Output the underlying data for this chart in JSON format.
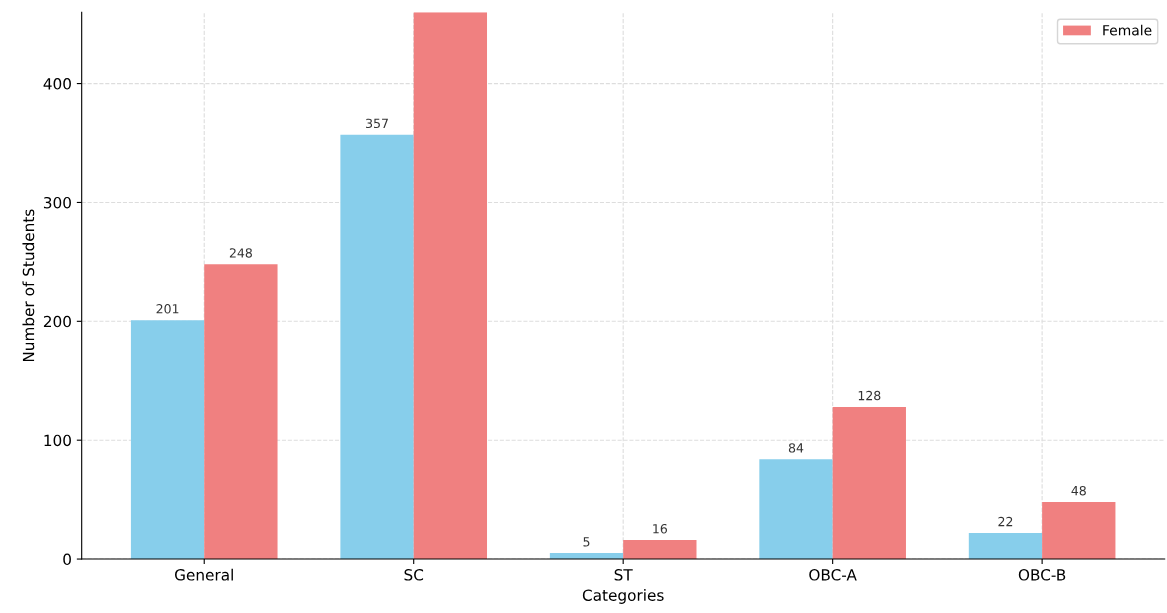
{
  "chart_data": {
    "type": "bar",
    "xlabel": "Categories",
    "ylabel": "Number of Students",
    "categories": [
      "General",
      "SC",
      "ST",
      "OBC-A",
      "OBC-B"
    ],
    "series": [
      {
        "color": "#87ceeb",
        "values": [
          201,
          357,
          5,
          84,
          22
        ],
        "value_labels": [
          "201",
          "357",
          "5",
          "84",
          "22"
        ]
      },
      {
        "name": "Female",
        "color": "#f08080",
        "values": [
          248,
          460,
          16,
          128,
          48
        ],
        "value_labels": [
          "248",
          null,
          "16",
          "128",
          "48"
        ]
      }
    ],
    "ylim": [
      0,
      460
    ],
    "yticks": [
      0,
      100,
      200,
      300,
      400
    ],
    "grid": true,
    "legend": "top right"
  }
}
